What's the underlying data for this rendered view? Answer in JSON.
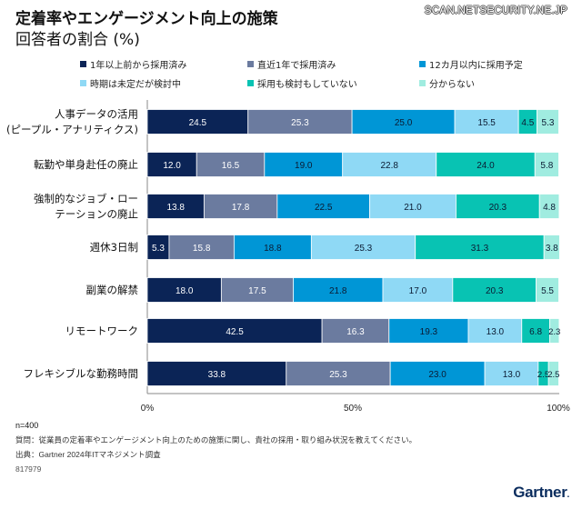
{
  "header": {
    "title": "定着率やエンゲージメント向上の施策",
    "subtitle": "回答者の割合 (%)",
    "watermark": "SCAN.NETSECURITY.NE.JP"
  },
  "chart_data": {
    "type": "bar",
    "orientation": "horizontal",
    "stacked": true,
    "title": "定着率やエンゲージメント向上の施策",
    "subtitle": "回答者の割合 (%)",
    "xlabel": "",
    "ylabel": "",
    "xlim": [
      0,
      100
    ],
    "xticks": [
      "0%",
      "50%",
      "100%"
    ],
    "grid": false,
    "legend_position": "top",
    "categories": [
      [
        "人事データの活用",
        "(ピープル・アナリティクス)"
      ],
      [
        "転勤や単身赴任の廃止"
      ],
      [
        "強制的なジョブ・ロー",
        "テーションの廃止"
      ],
      [
        "週休3日制"
      ],
      [
        "副業の解禁"
      ],
      [
        "リモートワーク"
      ],
      [
        "フレキシブルな勤務時間"
      ]
    ],
    "series": [
      {
        "name": "1年以上前から採用済み",
        "color": "#0b2456",
        "label_color": "#ffffff",
        "values": [
          24.5,
          12.0,
          13.8,
          5.3,
          18.0,
          42.5,
          33.8
        ]
      },
      {
        "name": "直近1年で採用済み",
        "color": "#6b7b9f",
        "label_color": "#ffffff",
        "values": [
          25.3,
          16.5,
          17.8,
          15.8,
          17.5,
          16.3,
          25.3
        ]
      },
      {
        "name": "12カ月以内に採用予定",
        "color": "#0096d6",
        "label_color": "#0b1b33",
        "values": [
          25.0,
          19.0,
          22.5,
          18.8,
          21.8,
          19.3,
          23.0
        ]
      },
      {
        "name": "時期は未定だが検討中",
        "color": "#8fd9f5",
        "label_color": "#0b1b33",
        "values": [
          15.5,
          22.8,
          21.0,
          25.3,
          17.0,
          13.0,
          13.0
        ]
      },
      {
        "name": "採用も検討もしていない",
        "color": "#08c3b3",
        "label_color": "#0b1b33",
        "values": [
          4.5,
          24.0,
          20.3,
          31.3,
          20.3,
          6.8,
          2.5
        ]
      },
      {
        "name": "分からない",
        "color": "#a0ece0",
        "label_color": "#0b1b33",
        "values": [
          5.3,
          5.8,
          4.8,
          3.8,
          5.5,
          2.3,
          2.5
        ]
      }
    ]
  },
  "footer": {
    "sample": "n=400",
    "question": "質問：従業員の定着率やエンゲージメント向上のための施策に関し、貴社の採用・取り組み状況を教えてください。",
    "source": "出典：Gartner 2024年ITマネジメント調査",
    "id": "817979",
    "logo": "Gartner",
    "logo_dot": "."
  }
}
